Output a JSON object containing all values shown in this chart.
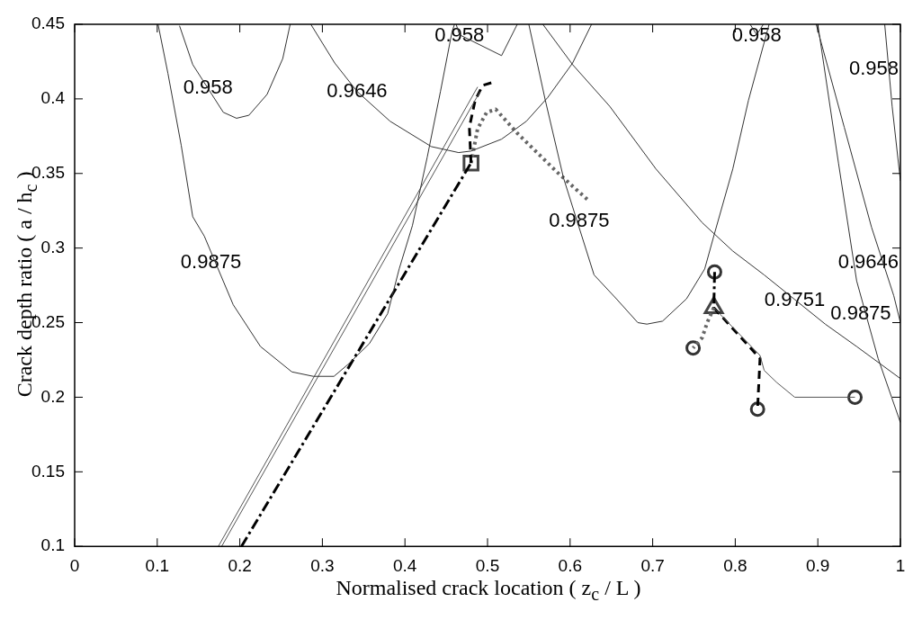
{
  "chart_data": {
    "type": "line",
    "xlabel": "Normalised crack location ( z$_{c}$ / L )",
    "ylabel": "Crack depth ratio ( a / h$_{c}$ )",
    "xlim": [
      0,
      1
    ],
    "ylim": [
      0.1,
      0.45
    ],
    "xticks": [
      0,
      0.1,
      0.2,
      0.3,
      0.4,
      0.5,
      0.6,
      0.7,
      0.8,
      0.9,
      1
    ],
    "yticks": [
      0.1,
      0.15,
      0.2,
      0.25,
      0.3,
      0.35,
      0.4,
      0.45
    ],
    "grid": false,
    "legend": false,
    "series": [
      {
        "color": "#333333",
        "line_style": "solid",
        "x": [
          0.101,
          0.113,
          0.129,
          0.143,
          0.157,
          0.192,
          0.225,
          0.263,
          0.289,
          0.314,
          0.331,
          0.357,
          0.379,
          0.393,
          0.409,
          0.427,
          0.443,
          0.457,
          0.46
        ],
        "values": [
          0.45,
          0.417,
          0.369,
          0.321,
          0.308,
          0.262,
          0.234,
          0.217,
          0.214,
          0.214,
          0.222,
          0.236,
          0.256,
          0.286,
          0.315,
          0.361,
          0.405,
          0.445,
          0.45
        ]
      },
      {
        "color": "#333333",
        "line_style": "solid",
        "x": [
          0.127,
          0.143,
          0.18,
          0.196,
          0.211,
          0.233,
          0.252,
          0.261
        ],
        "values": [
          0.449,
          0.423,
          0.391,
          0.387,
          0.389,
          0.403,
          0.427,
          0.45
        ]
      },
      {
        "color": "#333333",
        "line_style": "solid",
        "x": [
          0.286,
          0.315,
          0.342,
          0.382,
          0.432,
          0.465,
          0.48,
          0.517,
          0.547,
          0.573,
          0.603,
          0.626
        ],
        "values": [
          0.45,
          0.424,
          0.405,
          0.385,
          0.368,
          0.364,
          0.365,
          0.373,
          0.385,
          0.401,
          0.424,
          0.45
        ]
      },
      {
        "color": "#333333",
        "line_style": "solid",
        "x": [
          0.462,
          0.466,
          0.517,
          0.536
        ],
        "values": [
          0.45,
          0.443,
          0.429,
          0.45
        ]
      },
      {
        "color": "#333333",
        "line_style": "solid",
        "x": [
          0.55,
          0.57,
          0.592,
          0.629,
          0.656,
          0.682,
          0.693,
          0.712,
          0.741,
          0.763,
          0.775,
          0.797,
          0.816,
          0.841
        ],
        "values": [
          0.45,
          0.399,
          0.347,
          0.282,
          0.266,
          0.25,
          0.249,
          0.251,
          0.266,
          0.286,
          0.31,
          0.353,
          0.399,
          0.45
        ]
      },
      {
        "color": "#333333",
        "line_style": "solid",
        "x": [
          0.567,
          0.603,
          0.648,
          0.704,
          0.76,
          0.797,
          0.835,
          0.909,
          0.947,
          1.0
        ],
        "values": [
          0.45,
          0.423,
          0.395,
          0.353,
          0.317,
          0.298,
          0.282,
          0.249,
          0.234,
          0.2125
        ]
      },
      {
        "color": "#333333",
        "line_style": "solid",
        "x": [
          0.898,
          0.932,
          0.965,
          0.992,
          1.0
        ],
        "values": [
          0.45,
          0.381,
          0.314,
          0.268,
          0.25
        ]
      },
      {
        "color": "#333333",
        "line_style": "solid",
        "x": [
          0.9,
          0.925,
          0.947,
          0.973,
          1.0
        ],
        "values": [
          0.45,
          0.357,
          0.278,
          0.226,
          0.183
        ]
      },
      {
        "color": "#333333",
        "line_style": "solid",
        "x": [
          0.981,
          0.99,
          1.0
        ],
        "values": [
          0.45,
          0.395,
          0.345
        ]
      },
      {
        "color": "#333333",
        "line_style": "solid",
        "x": [
          0.818,
          0.826,
          0.834
        ],
        "values": [
          0.45,
          0.443,
          0.45
        ]
      },
      {
        "color": "#555555",
        "line_style": "solid",
        "x": [
          0.174,
          0.488
        ],
        "values": [
          0.1,
          0.408
        ]
      },
      {
        "color": "#555555",
        "line_style": "solid",
        "x": [
          0.178,
          0.491
        ],
        "values": [
          0.1,
          0.405
        ]
      },
      {
        "color": "#000000",
        "line_style": "dashdot",
        "x": [
          0.202,
          0.48
        ],
        "values": [
          0.1,
          0.357
        ]
      },
      {
        "color": "#000000",
        "line_style": "dashed",
        "x": [
          0.48,
          0.478,
          0.485,
          0.494,
          0.506
        ],
        "values": [
          0.357,
          0.381,
          0.399,
          0.409,
          0.411
        ]
      },
      {
        "color": "#666666",
        "line_style": "dotted",
        "x": [
          0.48,
          0.488,
          0.499,
          0.51,
          0.536,
          0.584,
          0.622
        ],
        "values": [
          0.357,
          0.38,
          0.391,
          0.393,
          0.377,
          0.351,
          0.332
        ]
      },
      {
        "color": "#555555",
        "line_style": "solid",
        "x": [
          0.774,
          0.83,
          0.835,
          0.85,
          0.872,
          0.945
        ],
        "values": [
          0.26,
          0.228,
          0.218,
          0.21,
          0.2,
          0.2
        ]
      },
      {
        "color": "#000000",
        "line_style": "dashdot",
        "x": [
          0.775,
          0.774
        ],
        "values": [
          0.284,
          0.26
        ]
      },
      {
        "color": "#666666",
        "line_style": "dotted",
        "x": [
          0.774,
          0.766,
          0.76,
          0.749
        ],
        "values": [
          0.26,
          0.25,
          0.24,
          0.233
        ]
      },
      {
        "color": "#000000",
        "line_style": "dashed",
        "x": [
          0.774,
          0.83,
          0.827
        ],
        "values": [
          0.26,
          0.226,
          0.192
        ]
      },
      {
        "type": "scatter",
        "marker": "square",
        "color": "#444444",
        "x": [
          0.48
        ],
        "values": [
          0.357
        ]
      },
      {
        "type": "scatter",
        "marker": "triangle",
        "color": "#444444",
        "x": [
          0.774
        ],
        "values": [
          0.26
        ]
      },
      {
        "type": "scatter",
        "marker": "circle",
        "color": "#333333",
        "x": [
          0.775,
          0.749,
          0.827,
          0.945
        ],
        "values": [
          0.284,
          0.233,
          0.192,
          0.2
        ]
      }
    ],
    "annotations": [
      {
        "text": "0.9875",
        "x": 0.165,
        "y": 0.29
      },
      {
        "text": "0.958",
        "x": 0.1615,
        "y": 0.407
      },
      {
        "text": "0.9646",
        "x": 0.342,
        "y": 0.405
      },
      {
        "text": "0.958",
        "x": 0.466,
        "y": 0.443
      },
      {
        "text": "0.9875",
        "x": 0.611,
        "y": 0.318
      },
      {
        "text": "0.958",
        "x": 0.826,
        "y": 0.443
      },
      {
        "text": "0.9751",
        "x": 0.872,
        "y": 0.265
      },
      {
        "text": "0.9646",
        "x": 0.978,
        "y": 0.29
      },
      {
        "text": "0.9875",
        "x": 0.952,
        "y": 0.256
      },
      {
        "text": "0.958",
        "x": 0.981,
        "y": 0.42
      }
    ]
  }
}
